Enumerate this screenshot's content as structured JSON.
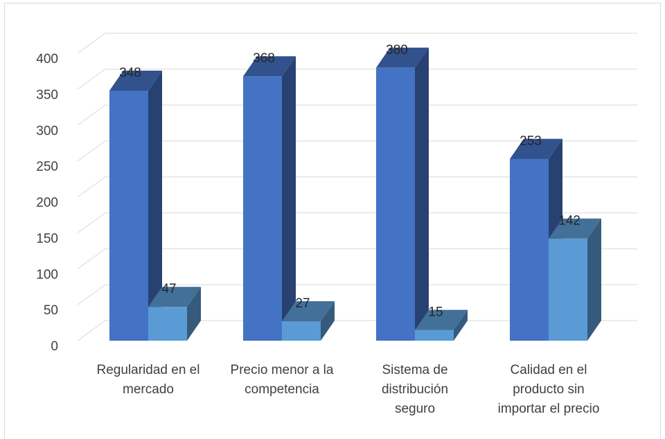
{
  "chart_data": {
    "type": "bar",
    "subtype": "3d-clustered-column",
    "categories": [
      [
        "Regularidad en el",
        "mercado"
      ],
      [
        "Precio menor a la",
        "competencia"
      ],
      [
        "Sistema de",
        "distribución",
        "seguro"
      ],
      [
        "Calidad en el",
        "producto sin",
        "importar el precio"
      ]
    ],
    "series": [
      {
        "values": [
          348,
          368,
          380,
          253
        ],
        "color": "#4472C4"
      },
      {
        "values": [
          47,
          27,
          15,
          142
        ],
        "color": "#5B9BD5"
      }
    ],
    "data_labels": true,
    "ylim": [
      0,
      400
    ],
    "yticks": [
      0,
      50,
      100,
      150,
      200,
      250,
      300,
      350,
      400
    ],
    "grid": true,
    "legend": "none",
    "title": "",
    "xlabel": "",
    "ylabel": ""
  }
}
